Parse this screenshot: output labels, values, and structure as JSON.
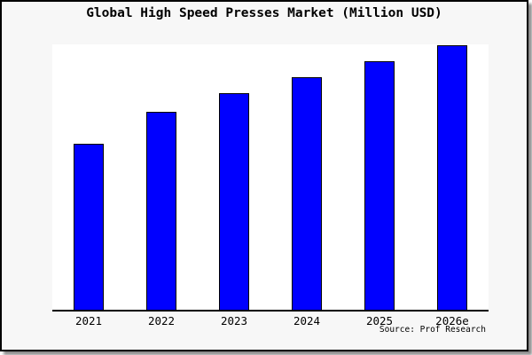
{
  "title": "Global High Speed Presses Market (Million USD)",
  "source_credit": "Source: Prof Research",
  "colors": {
    "canvas_background": "#f7f7f7",
    "plot_background": "#ffffff",
    "bar_fill": "#0000ff",
    "bar_border": "#000000",
    "axis": "#000000",
    "text": "#000000",
    "frame_border": "#000000",
    "shadow": "#999999"
  },
  "chart_data": {
    "type": "bar",
    "title": "Global High Speed Presses Market (Million USD)",
    "categories": [
      "2021",
      "2022",
      "2023",
      "2024",
      "2025",
      "2026e"
    ],
    "values": [
      63,
      75,
      82,
      88,
      94,
      100
    ],
    "values_note": "no y-axis tick labels shown; values are relative estimates from bar heights (max bar = 100)",
    "xlabel": "",
    "ylabel": "",
    "ylim": [
      0,
      100.3
    ],
    "y_axis_labels_visible": false,
    "grid": false,
    "legend": false,
    "annotations": [
      "Source: Prof Research"
    ]
  }
}
